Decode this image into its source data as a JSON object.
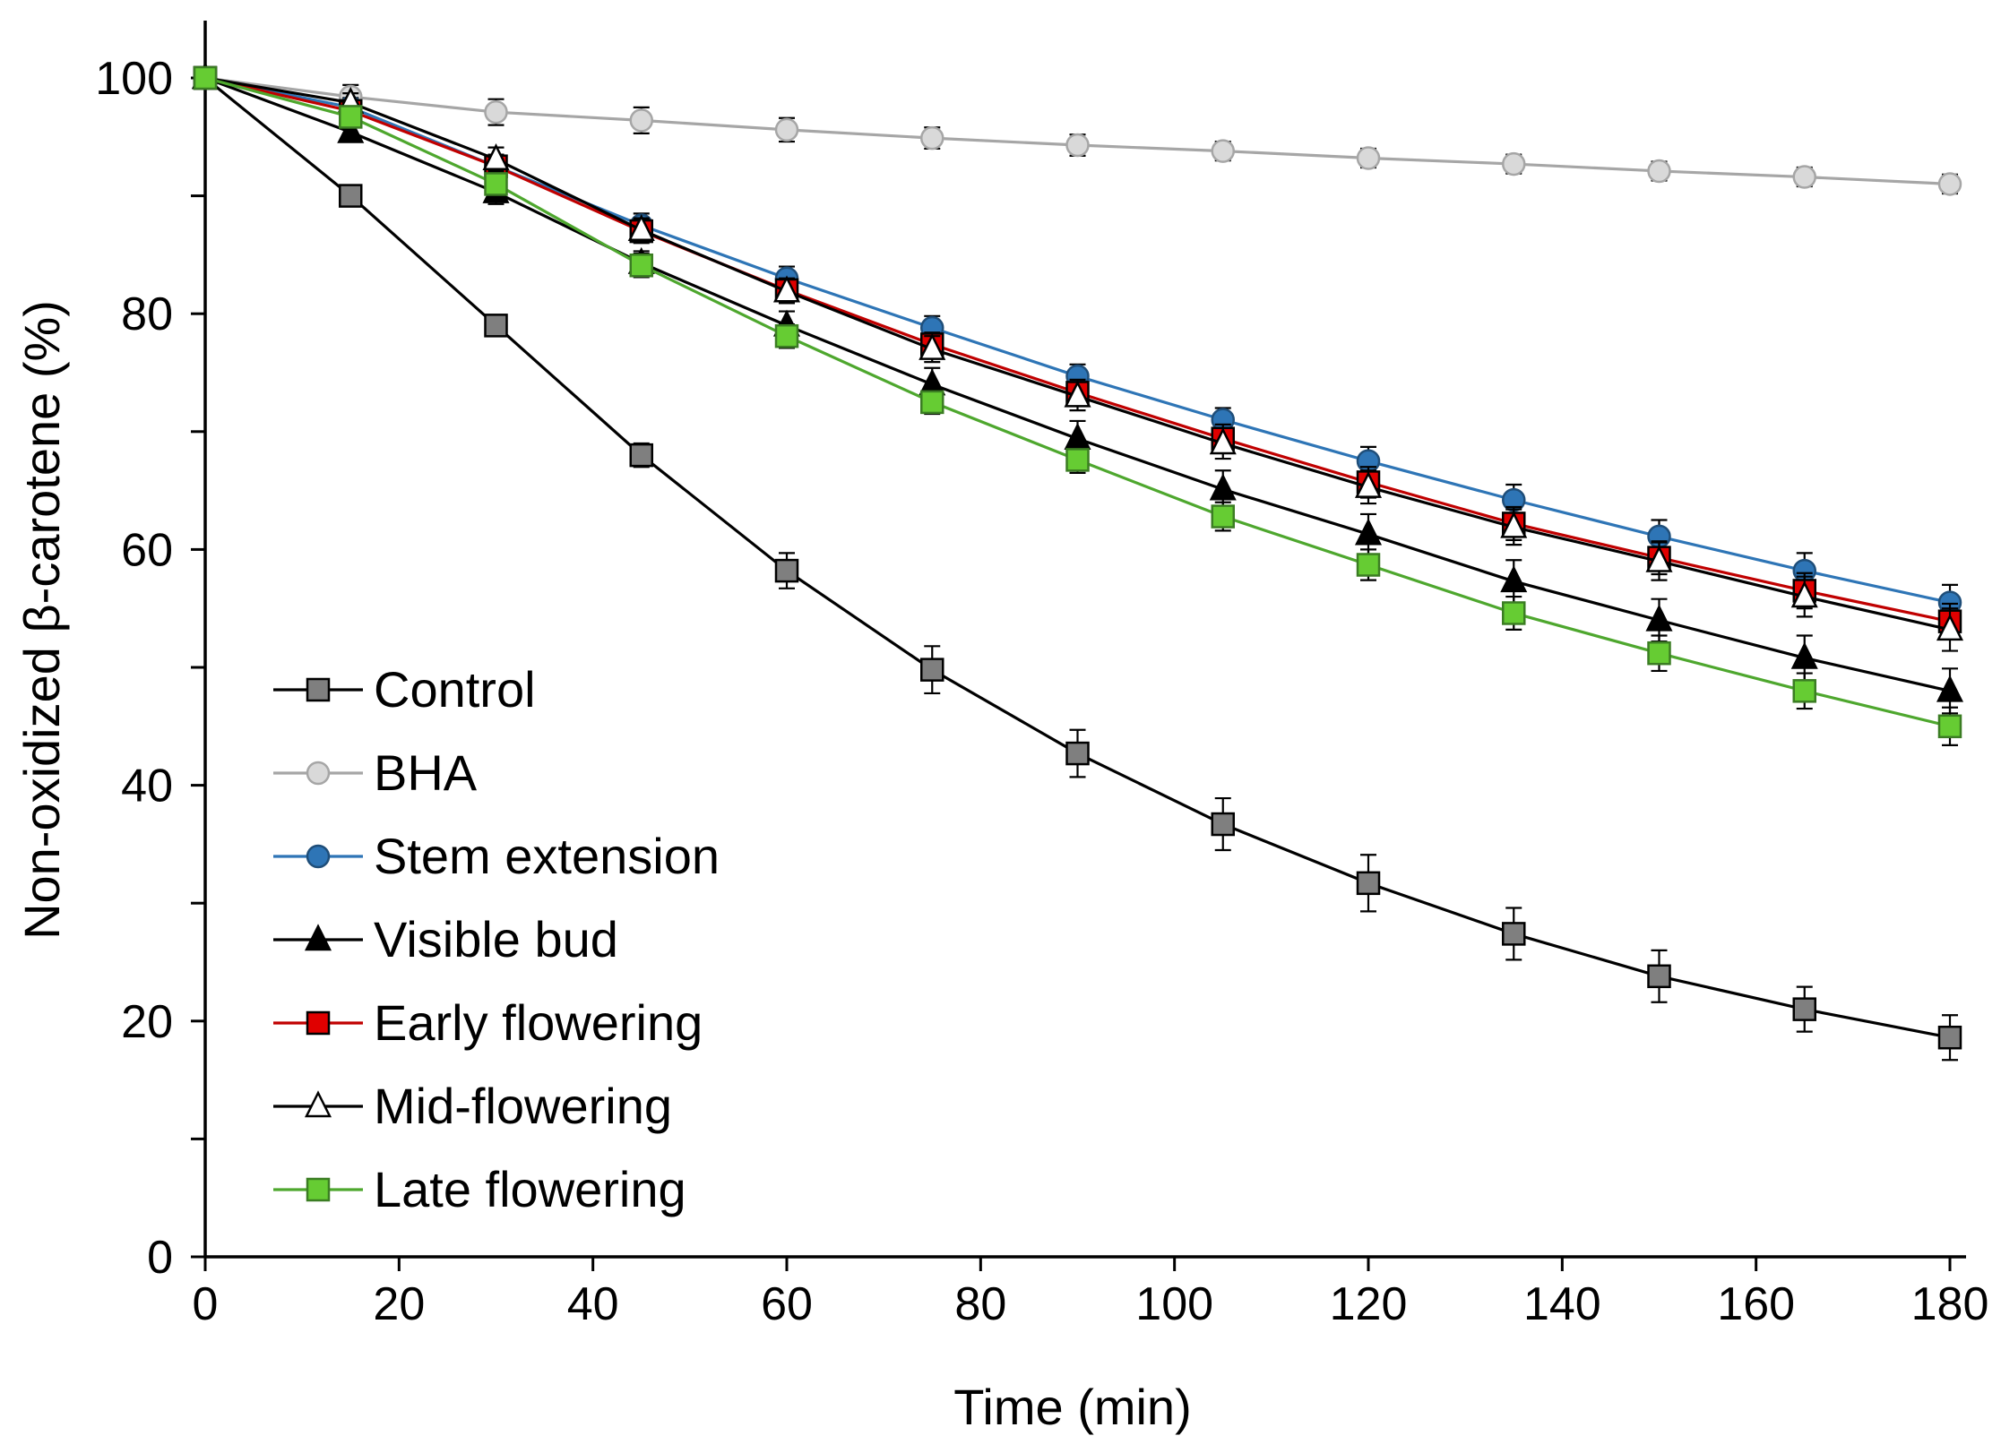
{
  "chart_data": {
    "type": "line",
    "title": "",
    "xlabel": "Time (min)",
    "ylabel": "Non-oxidized β-carotene (%)",
    "xlim": [
      0,
      180
    ],
    "ylim": [
      0,
      100
    ],
    "xticks": [
      0,
      20,
      40,
      60,
      80,
      100,
      120,
      140,
      160,
      180
    ],
    "yticks": [
      0,
      20,
      40,
      60,
      80,
      100
    ],
    "yminor": [
      10,
      30,
      50,
      70,
      90
    ],
    "grid": false,
    "legend_position": "bottom-left",
    "x": [
      0,
      15,
      30,
      45,
      60,
      75,
      90,
      105,
      120,
      135,
      150,
      165,
      180
    ],
    "series": [
      {
        "name": "Control",
        "marker": "square",
        "line_color": "#000000",
        "marker_fill": "#7f7f7f",
        "marker_edge": "#000000",
        "values": [
          100,
          90,
          79,
          68,
          58.2,
          49.8,
          42.7,
          36.7,
          31.7,
          27.4,
          23.8,
          21.0,
          18.6
        ],
        "errors": [
          0.5,
          0.5,
          0.6,
          1.0,
          1.5,
          2.0,
          2.0,
          2.2,
          2.4,
          2.2,
          2.2,
          1.9,
          1.9
        ]
      },
      {
        "name": "BHA",
        "marker": "circle",
        "line_color": "#a6a6a6",
        "marker_fill": "#d9d9d9",
        "marker_edge": "#a6a6a6",
        "values": [
          100,
          98.4,
          97.1,
          96.4,
          95.6,
          94.9,
          94.3,
          93.8,
          93.2,
          92.7,
          92.1,
          91.6,
          91.0
        ],
        "errors": [
          0.5,
          1.0,
          1.1,
          1.1,
          1.0,
          0.9,
          0.9,
          0.8,
          0.8,
          0.8,
          0.8,
          0.8,
          0.8
        ]
      },
      {
        "name": "Stem extension",
        "marker": "circle",
        "line_color": "#2e75b6",
        "marker_fill": "#2e75b6",
        "marker_edge": "#1f4e79",
        "values": [
          100,
          97.5,
          92.5,
          87.5,
          83,
          78.8,
          74.7,
          71,
          67.5,
          64.2,
          61.1,
          58.2,
          55.5
        ],
        "errors": [
          0.5,
          0.8,
          1.0,
          1.0,
          1.0,
          1.0,
          1.0,
          1.0,
          1.2,
          1.3,
          1.4,
          1.5,
          1.5
        ]
      },
      {
        "name": "Visible bud",
        "marker": "triangle",
        "line_color": "#000000",
        "marker_fill": "#000000",
        "marker_edge": "#000000",
        "values": [
          100,
          95.4,
          90.3,
          84.3,
          79,
          74,
          69.4,
          65.1,
          61.3,
          57.3,
          54,
          50.8,
          48
        ],
        "errors": [
          0.5,
          0.8,
          1.0,
          1.0,
          1.2,
          1.4,
          1.5,
          1.6,
          1.7,
          1.8,
          1.8,
          1.9,
          1.9
        ]
      },
      {
        "name": "Early flowering",
        "marker": "square",
        "line_color": "#c00000",
        "marker_fill": "#e00000",
        "marker_edge": "#000000",
        "values": [
          100,
          97.2,
          92.5,
          87,
          82,
          77.4,
          73.3,
          69.4,
          65.7,
          62.2,
          59.3,
          56.5,
          53.9
        ],
        "errors": [
          0.5,
          0.8,
          1.0,
          1.0,
          1.0,
          1.0,
          1.1,
          1.2,
          1.3,
          1.4,
          1.4,
          1.5,
          1.5
        ]
      },
      {
        "name": "Mid-flowering",
        "marker": "triangle",
        "line_color": "#000000",
        "marker_fill": "#ffffff",
        "marker_edge": "#000000",
        "values": [
          100,
          97.9,
          93.1,
          87.1,
          81.9,
          77,
          73,
          69,
          65.3,
          61.9,
          59,
          56,
          53.2
        ],
        "errors": [
          0.5,
          0.8,
          1.0,
          1.0,
          1.0,
          1.1,
          1.2,
          1.3,
          1.4,
          1.5,
          1.6,
          1.7,
          1.8
        ]
      },
      {
        "name": "Late flowering",
        "marker": "square",
        "line_color": "#4ea72e",
        "marker_fill": "#66cc33",
        "marker_edge": "#3b7d23",
        "values": [
          100,
          96.7,
          91,
          84.1,
          78.1,
          72.5,
          67.6,
          62.8,
          58.7,
          54.6,
          51.2,
          48,
          45
        ],
        "errors": [
          0.5,
          0.8,
          1.0,
          1.0,
          1.0,
          1.0,
          1.1,
          1.2,
          1.3,
          1.4,
          1.5,
          1.5,
          1.6
        ]
      }
    ]
  }
}
